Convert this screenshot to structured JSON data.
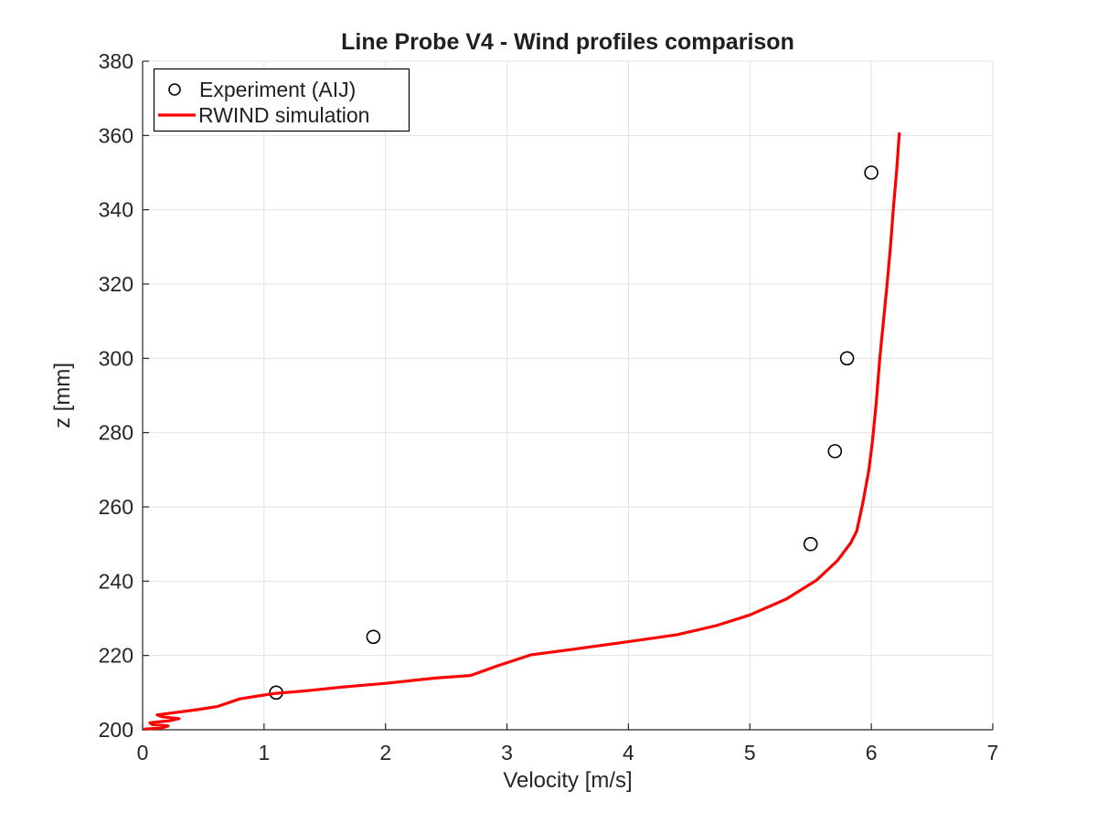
{
  "title": "Line Probe V4 - Wind profiles comparison",
  "legend": {
    "items": [
      {
        "label": "Experiment (AIJ)",
        "marker": "circle"
      },
      {
        "label": "RWIND simulation",
        "marker": "line"
      }
    ]
  },
  "colors": {
    "simulation_line": "#FF0000",
    "marker_stroke": "#000000",
    "grid": "#E2E2E2",
    "axis": "#262626",
    "text": "#262626",
    "background": "#FFFFFF"
  },
  "chart_data": {
    "type": "line",
    "title": "Line Probe V4 - Wind profiles comparison",
    "xlabel": "Velocity [m/s]",
    "ylabel": "z [mm]",
    "xlim": [
      0,
      7
    ],
    "ylim": [
      200,
      380
    ],
    "x_ticks": [
      0,
      1,
      2,
      3,
      4,
      5,
      6,
      7
    ],
    "y_ticks": [
      200,
      220,
      240,
      260,
      280,
      300,
      320,
      340,
      360,
      380
    ],
    "grid": true,
    "legend_position": "top-left",
    "series": [
      {
        "name": "Experiment (AIJ)",
        "type": "scatter",
        "marker": "circle",
        "color": "#000000",
        "x": [
          1.1,
          1.9,
          5.5,
          5.7,
          5.8,
          6.0
        ],
        "y": [
          210,
          225,
          250,
          275,
          300,
          350
        ]
      },
      {
        "name": "RWIND simulation",
        "type": "line",
        "color": "#FF0000",
        "x": [
          0.02,
          0.16,
          0.21,
          0.08,
          0.06,
          0.22,
          0.3,
          0.16,
          0.12,
          0.26,
          0.45,
          0.62,
          0.8,
          0.95,
          1.1,
          1.35,
          1.65,
          2.0,
          2.4,
          2.7,
          2.92,
          3.2,
          3.55,
          4.0,
          4.4,
          4.72,
          5.0,
          5.3,
          5.55,
          5.72,
          5.83,
          5.88,
          5.93,
          5.98,
          6.01,
          6.04,
          6.07,
          6.1,
          6.13,
          6.16,
          6.18,
          6.21,
          6.23
        ],
        "y": [
          200.2,
          200.5,
          201.0,
          201.4,
          201.9,
          202.4,
          203.0,
          203.5,
          204.0,
          204.6,
          205.4,
          206.3,
          208.3,
          209.1,
          209.8,
          210.5,
          211.5,
          212.5,
          213.9,
          214.6,
          217.2,
          220.2,
          221.7,
          223.7,
          225.6,
          228.0,
          230.9,
          235.2,
          240.3,
          245.5,
          250.3,
          253.5,
          261.0,
          270.0,
          278.0,
          288.0,
          300.0,
          310.0,
          320.0,
          331.0,
          340.0,
          351.0,
          360.5
        ]
      }
    ]
  }
}
